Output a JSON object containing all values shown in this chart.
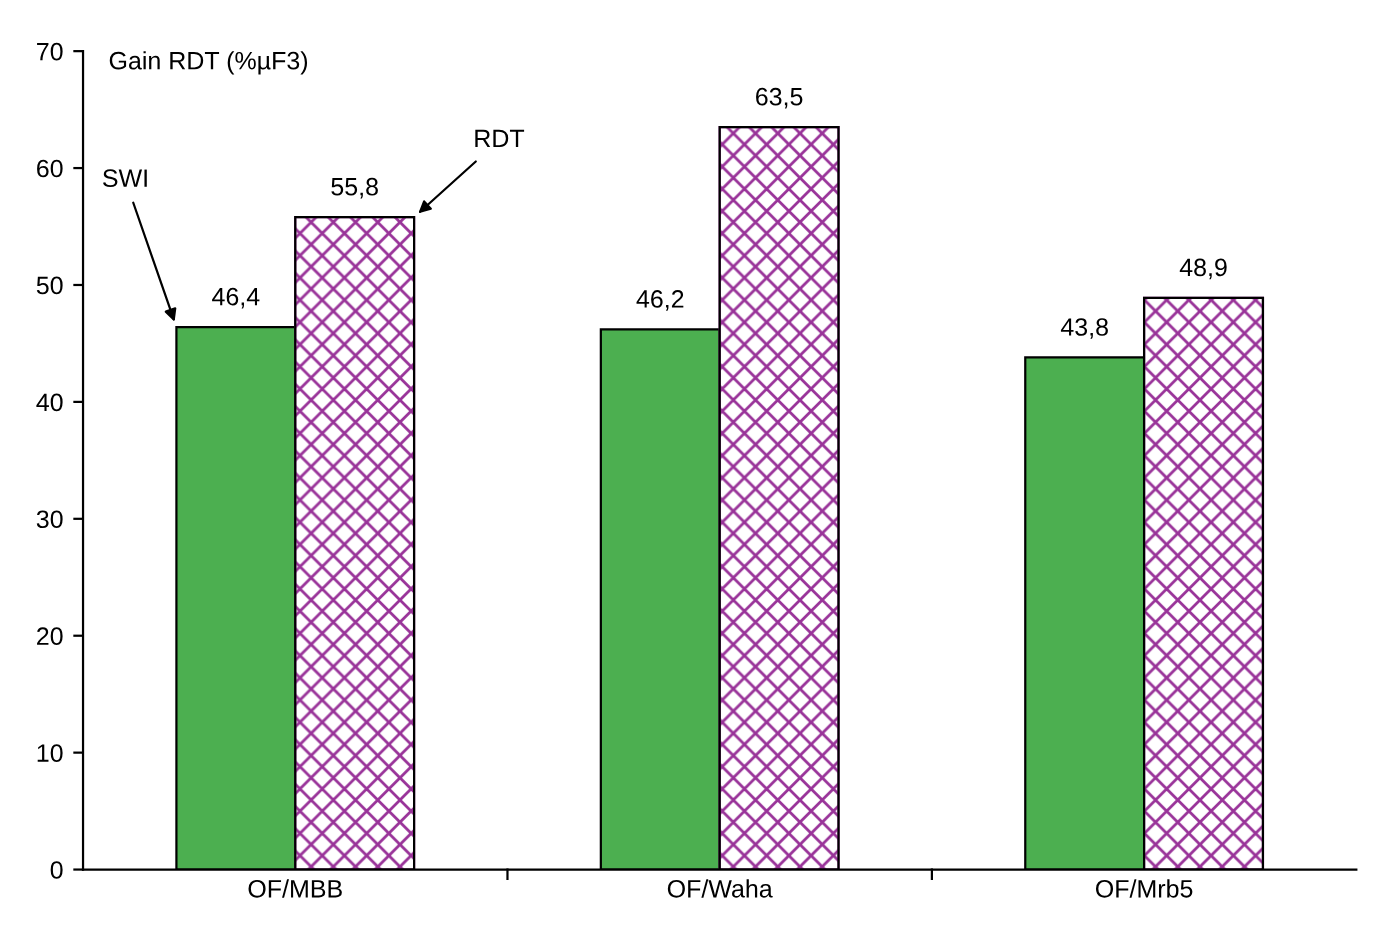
{
  "chart_data": {
    "type": "bar",
    "ylabel": "Gain RDT (%µF3)",
    "categories": [
      "OF/MBB",
      "OF/Waha",
      "OF/Mrb5"
    ],
    "series": [
      {
        "name": "SWI",
        "color": "#4caf50",
        "values": [
          46.4,
          46.2,
          43.8
        ],
        "value_labels": [
          "46,4",
          "46,2",
          "43,8"
        ]
      },
      {
        "name": "RDT",
        "color": "#993399",
        "values": [
          55.8,
          63.5,
          48.9
        ],
        "value_labels": [
          "55,8",
          "63,5",
          "48,9"
        ]
      }
    ],
    "ylim": [
      0,
      70
    ],
    "yticks": [
      0,
      10,
      20,
      30,
      40,
      50,
      60,
      70
    ],
    "grid": false,
    "legend": false
  }
}
